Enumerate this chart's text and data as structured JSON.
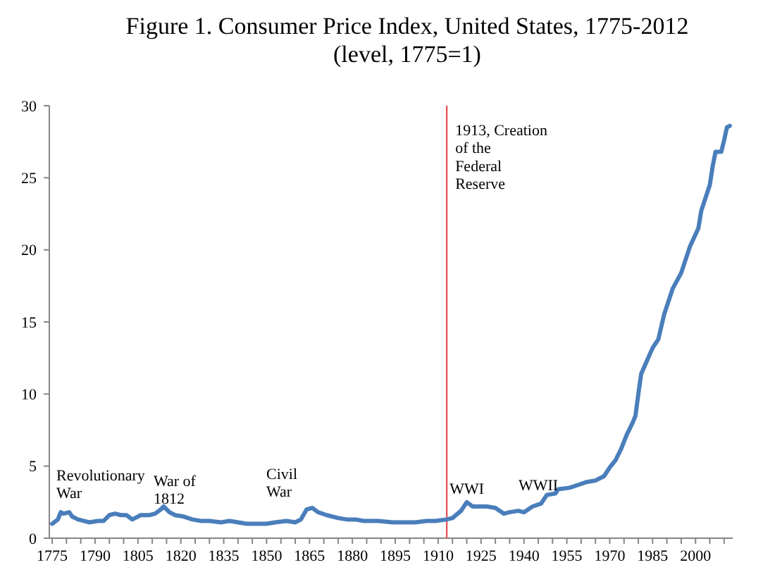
{
  "chart_data": {
    "type": "line",
    "title": "Figure 1. Consumer Price Index, United States, 1775-2012",
    "subtitle": "(level, 1775=1)",
    "x": [
      1775,
      1777,
      1778,
      1779,
      1781,
      1782,
      1784,
      1786,
      1788,
      1791,
      1793,
      1795,
      1797,
      1799,
      1801,
      1803,
      1804,
      1806,
      1809,
      1811,
      1813,
      1814,
      1816,
      1818,
      1821,
      1824,
      1827,
      1830,
      1834,
      1837,
      1840,
      1843,
      1847,
      1850,
      1853,
      1857,
      1860,
      1862,
      1864,
      1866,
      1868,
      1871,
      1875,
      1878,
      1881,
      1884,
      1889,
      1894,
      1899,
      1902,
      1906,
      1909,
      1913,
      1915,
      1918,
      1920,
      1922,
      1924,
      1927,
      1930,
      1933,
      1935,
      1938,
      1940,
      1943,
      1946,
      1948,
      1951,
      1952,
      1956,
      1959,
      1962,
      1965,
      1968,
      1970,
      1972,
      1974,
      1976,
      1978,
      1979,
      1980,
      1981,
      1983,
      1985,
      1987,
      1989,
      1992,
      1995,
      1998,
      2001,
      2002,
      2005,
      2006,
      2007,
      2009,
      2010,
      2011,
      2012
    ],
    "values": [
      1.0,
      1.3,
      1.8,
      1.7,
      1.8,
      1.5,
      1.3,
      1.2,
      1.1,
      1.2,
      1.2,
      1.6,
      1.7,
      1.6,
      1.6,
      1.3,
      1.4,
      1.6,
      1.6,
      1.7,
      2.0,
      2.2,
      1.8,
      1.6,
      1.5,
      1.3,
      1.2,
      1.2,
      1.1,
      1.2,
      1.1,
      1.0,
      1.0,
      1.0,
      1.1,
      1.2,
      1.1,
      1.3,
      2.0,
      2.1,
      1.8,
      1.6,
      1.4,
      1.3,
      1.3,
      1.2,
      1.2,
      1.1,
      1.1,
      1.1,
      1.2,
      1.2,
      1.3,
      1.4,
      1.9,
      2.5,
      2.2,
      2.2,
      2.2,
      2.1,
      1.7,
      1.8,
      1.9,
      1.8,
      2.2,
      2.4,
      3.0,
      3.1,
      3.4,
      3.5,
      3.7,
      3.9,
      4.0,
      4.3,
      4.9,
      5.4,
      6.2,
      7.2,
      8.0,
      8.5,
      10.0,
      11.4,
      12.3,
      13.2,
      13.8,
      15.5,
      17.3,
      18.4,
      20.2,
      21.5,
      22.7,
      24.5,
      25.8,
      26.8,
      26.8,
      27.6,
      28.5,
      28.6
    ],
    "color": "#4a7ebb",
    "xlim": [
      1774,
      2013
    ],
    "ylim": [
      0,
      30
    ],
    "xticks": [
      1775,
      {
        "value": 1780,
        "label": null
      },
      {
        "value": 1785,
        "label": null
      },
      1790,
      {
        "value": 1795,
        "label": null
      },
      {
        "value": 1800,
        "label": null
      },
      1805,
      {
        "value": 1810,
        "label": null
      },
      {
        "value": 1815,
        "label": null
      },
      1820,
      {
        "value": 1825,
        "label": null
      },
      {
        "value": 1830,
        "label": null
      },
      1835,
      {
        "value": 1840,
        "label": null
      },
      {
        "value": 1845,
        "label": null
      },
      1850,
      {
        "value": 1855,
        "label": null
      },
      {
        "value": 1860,
        "label": null
      },
      1865,
      {
        "value": 1870,
        "label": null
      },
      {
        "value": 1875,
        "label": null
      },
      1880,
      {
        "value": 1885,
        "label": null
      },
      {
        "value": 1890,
        "label": null
      },
      1895,
      {
        "value": 1900,
        "label": null
      },
      {
        "value": 1905,
        "label": null
      },
      1910,
      {
        "value": 1915,
        "label": null
      },
      {
        "value": 1920,
        "label": null
      },
      1925,
      {
        "value": 1930,
        "label": null
      },
      {
        "value": 1935,
        "label": null
      },
      1940,
      {
        "value": 1945,
        "label": null
      },
      {
        "value": 1950,
        "label": null
      },
      1955,
      {
        "value": 1960,
        "label": null
      },
      {
        "value": 1965,
        "label": null
      },
      1970,
      {
        "value": 1975,
        "label": null
      },
      {
        "value": 1980,
        "label": null
      },
      1985,
      {
        "value": 1990,
        "label": null
      },
      {
        "value": 1995,
        "label": null
      },
      2000,
      {
        "value": 2005,
        "label": null
      },
      {
        "value": 2010,
        "label": null
      }
    ],
    "yticks": [
      0,
      5,
      10,
      15,
      20,
      25,
      30
    ],
    "ref_lines": [
      {
        "axis": "x",
        "value": 1913,
        "label": "1913, Creation\nof the\nFederal\nReserve",
        "color": "#e5585a"
      }
    ],
    "annotations": [
      "Revolutionary\nWar",
      "War of\n1812",
      "Civil\nWar",
      {
        "text": "WWI",
        "x": 1914,
        "y": 3.1
      },
      "WWII"
    ]
  }
}
